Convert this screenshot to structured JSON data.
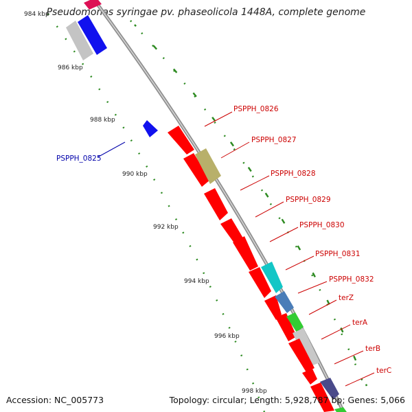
{
  "title": "Pseudomonas syringae pv. phaseolicola 1448A, complete genome",
  "accession": "Accession: NC_005773",
  "summary": "Topology: circular; Length: 5,928,787 bp; Genes: 5,066",
  "colors": {
    "backbone": "#9a9a9a",
    "ticks_dash": "#2e8b22",
    "forward_gene": "#ff0000",
    "label_forward": "#cc0000",
    "label_reverse": "#0000aa",
    "reverse_gene": "#0000ff"
  },
  "ticks": [
    "984 kbp",
    "986 kbp",
    "988 kbp",
    "990 kbp",
    "992 kbp",
    "994 kbp",
    "996 kbp",
    "998 kbp"
  ],
  "gene_labels": [
    {
      "text": "PSPPH_0825",
      "strand": "reverse"
    },
    {
      "text": "PSPPH_0826",
      "strand": "forward"
    },
    {
      "text": "PSPPH_0827",
      "strand": "forward"
    },
    {
      "text": "PSPPH_0828",
      "strand": "forward"
    },
    {
      "text": "PSPPH_0829",
      "strand": "forward"
    },
    {
      "text": "PSPPH_0830",
      "strand": "forward"
    },
    {
      "text": "PSPPH_0831",
      "strand": "forward"
    },
    {
      "text": "PSPPH_0832",
      "strand": "forward"
    },
    {
      "text": "terZ",
      "strand": "forward"
    },
    {
      "text": "terA",
      "strand": "forward"
    },
    {
      "text": "terB",
      "strand": "forward"
    },
    {
      "text": "terC",
      "strand": "forward"
    }
  ]
}
